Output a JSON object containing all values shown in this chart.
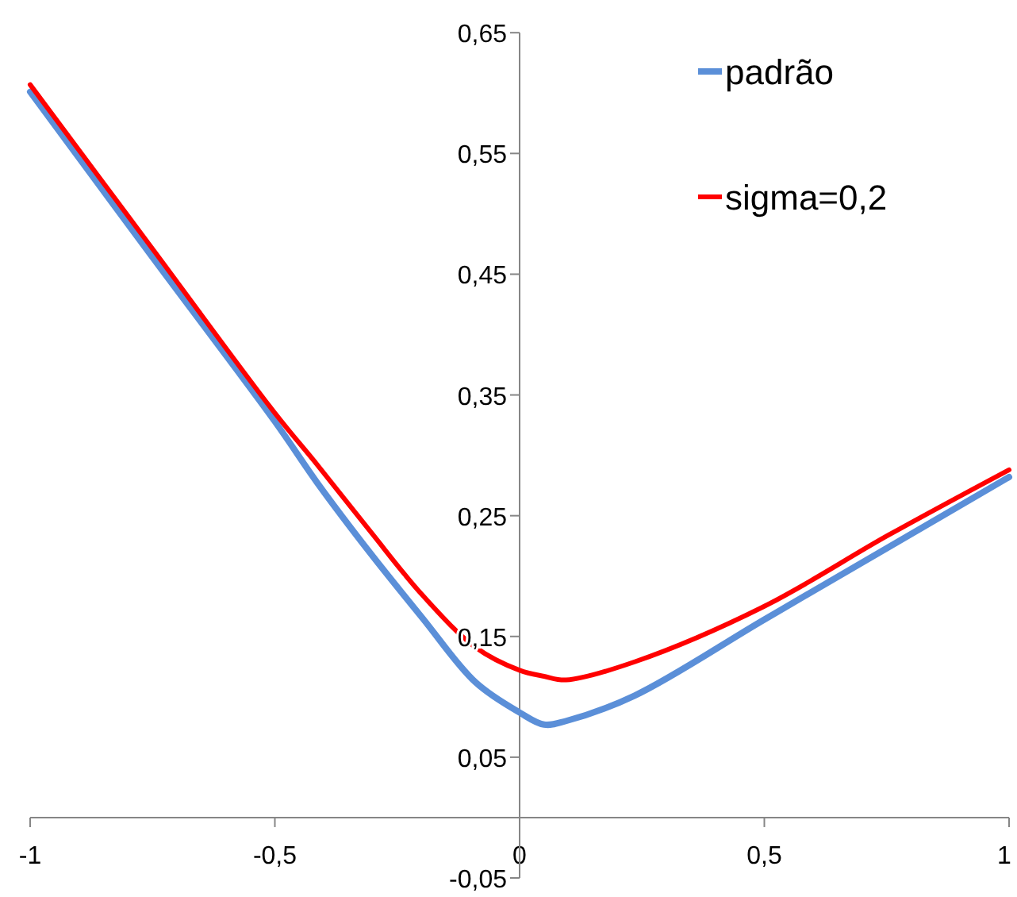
{
  "chart_data": {
    "type": "line",
    "legend": "top right",
    "grid": false,
    "line_style": "solid",
    "marker": "none",
    "xlim": [
      -1,
      1
    ],
    "ylim": [
      -0.05,
      0.65
    ],
    "xticks": [
      -1,
      {
        "value": -0.5,
        "label": "-0,5"
      },
      0,
      {
        "value": 0.5,
        "label": "0,5"
      },
      1
    ],
    "yticks": [
      {
        "value": -0.05,
        "label": "-0,05"
      },
      {
        "value": 0.05,
        "label": "0,05"
      },
      {
        "value": 0.15,
        "label": "0,15"
      },
      {
        "value": 0.25,
        "label": "0,25"
      },
      {
        "value": 0.35,
        "label": "0,35"
      },
      {
        "value": 0.45,
        "label": "0,45"
      },
      {
        "value": 0.55,
        "label": "0,55"
      },
      {
        "value": 0.65,
        "label": "0,65"
      }
    ],
    "series": [
      {
        "name": "padrão",
        "color": "#5b8fd8",
        "x": [
          -1,
          -0.75,
          -0.5,
          -0.413,
          -0.305,
          -0.198,
          -0.09,
          0,
          0.05,
          0.095,
          0.235,
          0.5,
          0.754,
          1
        ],
        "values": [
          0.601,
          0.464,
          0.328,
          0.277,
          0.219,
          0.165,
          0.112,
          0.087,
          0.077,
          0.08,
          0.101,
          0.164,
          0.224,
          0.282
        ]
      },
      {
        "name": "sigma=0,2",
        "color": "#ff0000",
        "x": [
          -1,
          -0.75,
          -0.5,
          -0.413,
          -0.305,
          -0.198,
          -0.09,
          0,
          0.05,
          0.095,
          0.235,
          0.5,
          0.754,
          1
        ],
        "values": [
          0.607,
          0.471,
          0.335,
          0.292,
          0.237,
          0.184,
          0.141,
          0.122,
          0.117,
          0.114,
          0.129,
          0.175,
          0.234,
          0.288
        ]
      }
    ]
  }
}
